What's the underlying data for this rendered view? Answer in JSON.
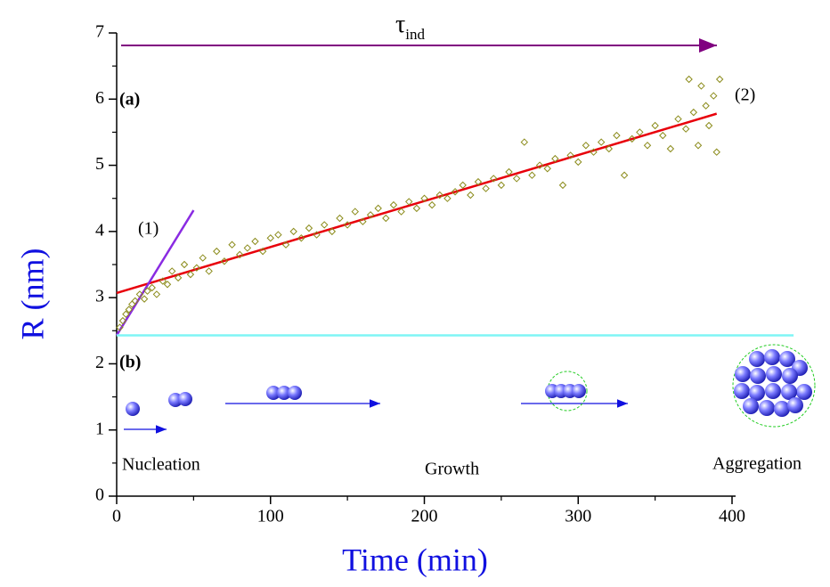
{
  "chart_data": {
    "type": "scatter",
    "x_label": "Time (min)",
    "y_label": "R (nm)",
    "xlim": [
      0,
      400
    ],
    "ylim": [
      0,
      7
    ],
    "xticks": [
      0,
      100,
      200,
      300,
      400
    ],
    "yticks": [
      0,
      1,
      2,
      3,
      4,
      5,
      6,
      7
    ],
    "points": {
      "color": "#8b8b1a",
      "x": [
        2,
        4,
        6,
        8,
        10,
        12,
        15,
        18,
        20,
        23,
        26,
        30,
        33,
        36,
        40,
        44,
        48,
        52,
        56,
        60,
        65,
        70,
        75,
        80,
        85,
        90,
        95,
        100,
        105,
        110,
        115,
        120,
        125,
        130,
        135,
        140,
        145,
        150,
        155,
        160,
        165,
        170,
        175,
        180,
        185,
        190,
        195,
        200,
        205,
        210,
        215,
        220,
        225,
        230,
        235,
        240,
        245,
        250,
        255,
        260,
        265,
        270,
        275,
        280,
        285,
        290,
        295,
        300,
        305,
        310,
        315,
        320,
        325,
        330,
        335,
        340,
        345,
        350,
        355,
        360,
        365,
        370,
        372,
        375,
        378,
        380,
        383,
        385,
        388,
        390,
        392
      ],
      "values": [
        2.55,
        2.65,
        2.75,
        2.82,
        2.9,
        2.95,
        3.05,
        2.98,
        3.1,
        3.15,
        3.05,
        3.25,
        3.2,
        3.4,
        3.3,
        3.5,
        3.35,
        3.45,
        3.6,
        3.4,
        3.7,
        3.55,
        3.8,
        3.65,
        3.75,
        3.85,
        3.7,
        3.9,
        3.95,
        3.8,
        4.0,
        3.9,
        4.05,
        3.95,
        4.1,
        4.0,
        4.2,
        4.1,
        4.3,
        4.15,
        4.25,
        4.35,
        4.2,
        4.4,
        4.3,
        4.45,
        4.35,
        4.5,
        4.4,
        4.55,
        4.5,
        4.6,
        4.7,
        4.55,
        4.75,
        4.65,
        4.8,
        4.7,
        4.9,
        4.8,
        5.35,
        4.85,
        5.0,
        4.95,
        5.1,
        4.7,
        5.15,
        5.05,
        5.3,
        5.2,
        5.35,
        5.25,
        5.45,
        4.85,
        5.4,
        5.5,
        5.3,
        5.6,
        5.45,
        5.25,
        5.7,
        5.55,
        6.3,
        5.8,
        5.3,
        6.2,
        5.9,
        5.6,
        6.05,
        5.2,
        6.3
      ]
    },
    "lines": [
      {
        "x": [
          0,
          390
        ],
        "values": [
          3.07,
          5.78
        ],
        "color": "#e8000b"
      },
      {
        "x": [
          0,
          50
        ],
        "values": [
          2.43,
          4.32
        ],
        "color": "#8a2be2"
      },
      {
        "x": [
          0,
          440
        ],
        "values": [
          2.43,
          2.43
        ],
        "color": "#7ff5f5"
      }
    ],
    "annotations": {
      "tau": "τ",
      "tau_sub": "ind",
      "a": "(a)",
      "b": "(b)",
      "one": "(1)",
      "two": "(2)",
      "nucleation": "Nucleation",
      "growth": "Growth",
      "aggregation": "Aggregation"
    }
  }
}
